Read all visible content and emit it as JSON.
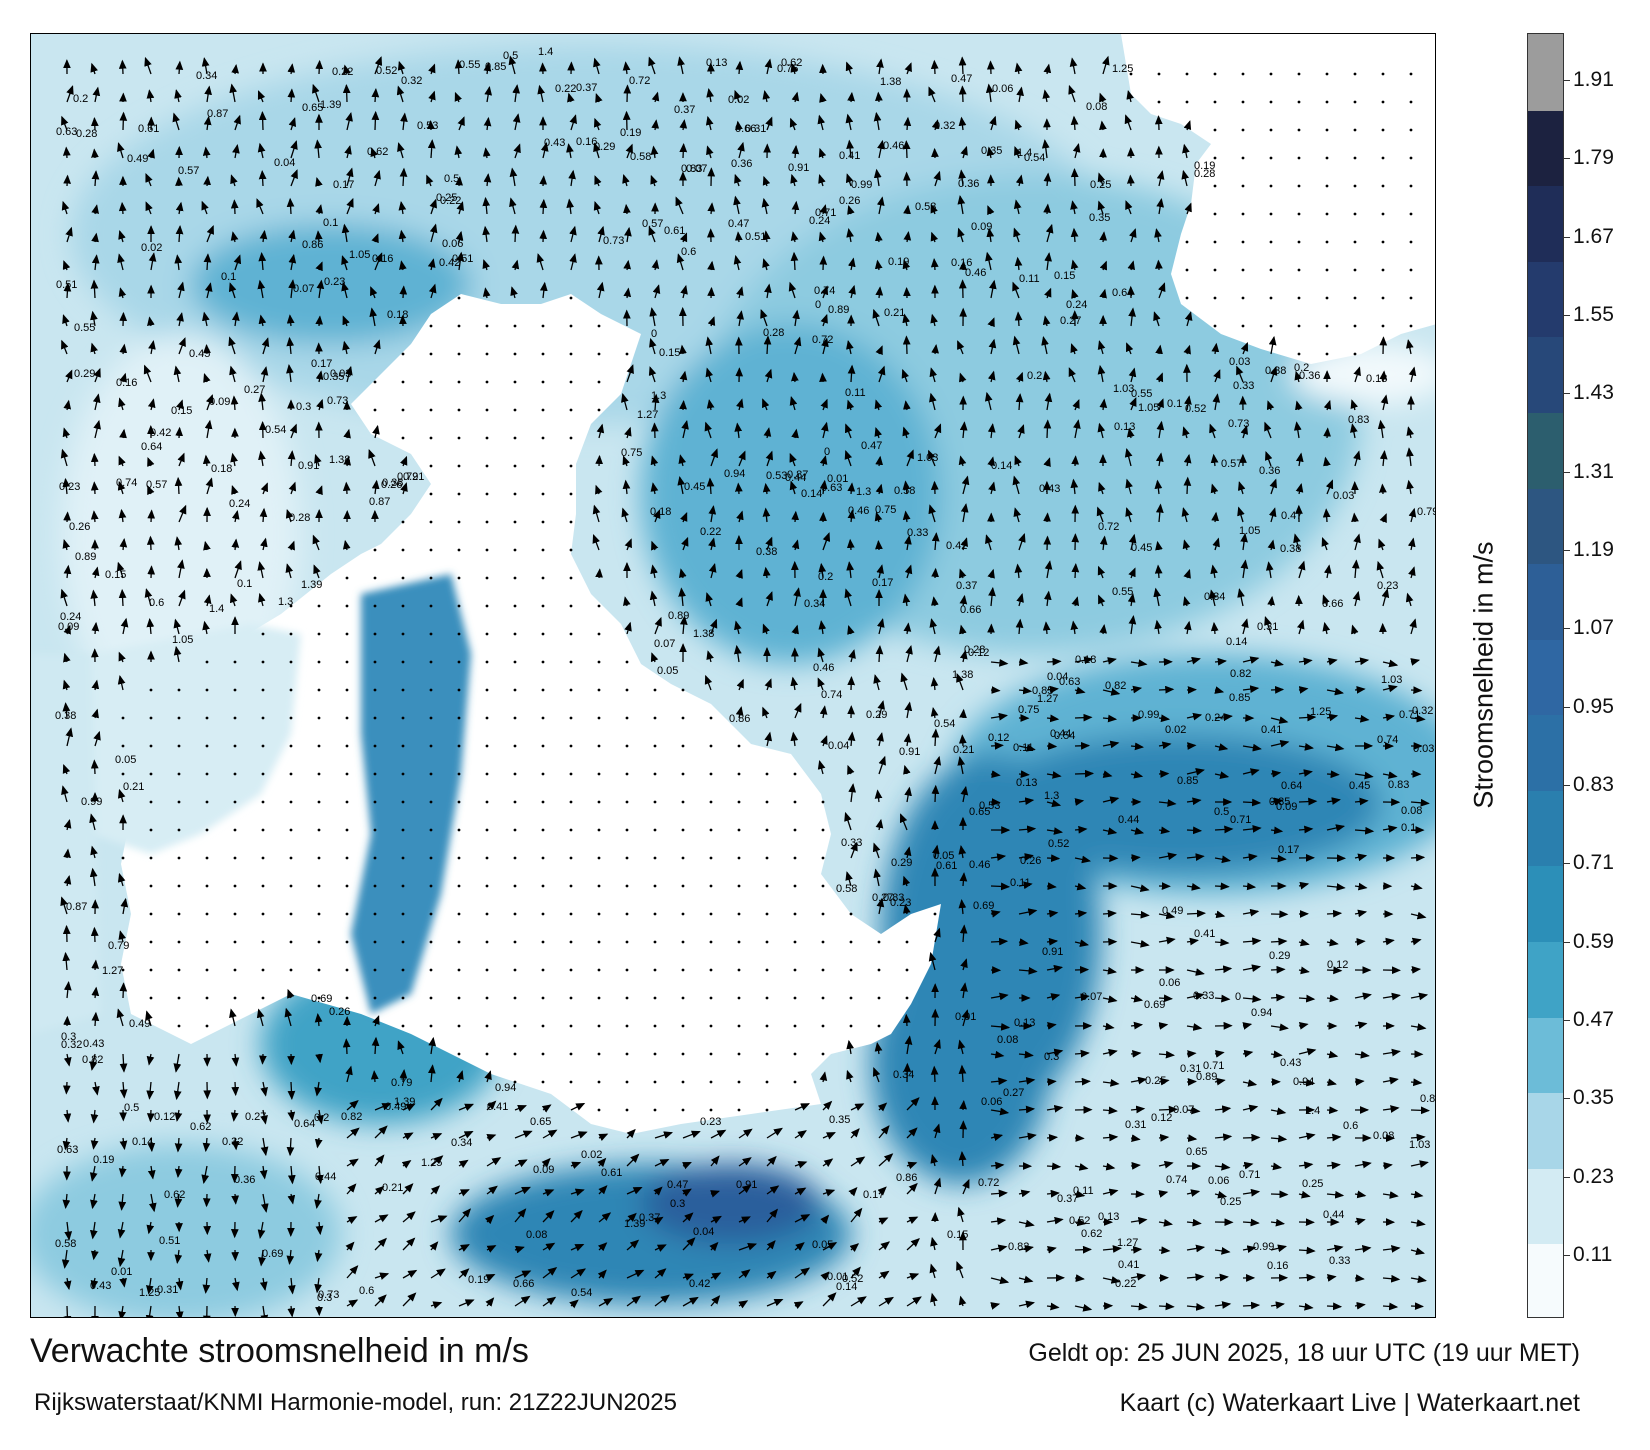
{
  "title": "Verwachte stroomsnelheid in m/s",
  "subtitle": "Rijkswaterstaat/KNMI Harmonie-model, run: 21Z22JUN2025",
  "valid_time": "Geldt op: 25 JUN 2025, 18 uur UTC (19 uur MET)",
  "credit": "Kaart (c) Waterkaart Live | Waterkaart.net",
  "colorbar": {
    "label": "Stroomsnelheid in m/s",
    "ticks": [
      "1.91",
      "1.79",
      "1.67",
      "1.55",
      "1.43",
      "1.31",
      "1.19",
      "1.07",
      "0.95",
      "0.83",
      "0.71",
      "0.59",
      "0.47",
      "0.35",
      "0.23",
      "0.11"
    ],
    "colors": [
      "#f6fbfd",
      "#d3ebf3",
      "#a8d6e8",
      "#6cbcd8",
      "#3fa3c6",
      "#2c8fb8",
      "#2a7fae",
      "#2c70a6",
      "#2f67a3",
      "#2d5f97",
      "#2d5681",
      "#2c5e6e",
      "#274879",
      "#243b6d",
      "#1f2d58",
      "#1c2240",
      "#9c9c9c"
    ]
  },
  "map": {
    "land_color": "#ffffff",
    "sea_colors": {
      "calm": "#d9eef5",
      "light": "#a9d7e8",
      "moderate": "#5fb2d3",
      "strong": "#2f86b5",
      "very_strong": "#2a5f9c"
    },
    "arrow_color": "#000000",
    "value_labels": [
      {
        "v": "0.09"
      },
      {
        "v": "0.07"
      },
      {
        "v": "0.12"
      },
      {
        "v": "0.16"
      },
      {
        "v": "0.11"
      },
      {
        "v": "0.17"
      },
      {
        "v": "0.14"
      },
      {
        "v": "0.13"
      },
      {
        "v": "0.21"
      },
      {
        "v": "0.26"
      },
      {
        "v": "0.27"
      },
      {
        "v": "0.31"
      },
      {
        "v": "0.22"
      },
      {
        "v": "0.08"
      },
      {
        "v": "0.06"
      },
      {
        "v": "0.1"
      },
      {
        "v": "0.15"
      },
      {
        "v": "0.18"
      },
      {
        "v": "0.19"
      },
      {
        "v": "0.2"
      },
      {
        "v": "0.25"
      },
      {
        "v": "0.24"
      },
      {
        "v": "0.28"
      },
      {
        "v": "0.29"
      },
      {
        "v": "0.32"
      },
      {
        "v": "0.35"
      },
      {
        "v": "0.37"
      },
      {
        "v": "0.33"
      },
      {
        "v": "0.3"
      },
      {
        "v": "0.23"
      },
      {
        "v": "0.46"
      },
      {
        "v": "0.47"
      },
      {
        "v": "0.54"
      },
      {
        "v": "0.52"
      },
      {
        "v": "0.44"
      },
      {
        "v": "0.43"
      },
      {
        "v": "0.41"
      },
      {
        "v": "0.38"
      },
      {
        "v": "0.34"
      },
      {
        "v": "0.36"
      },
      {
        "v": "0.62"
      },
      {
        "v": "0.74"
      },
      {
        "v": "0.82"
      },
      {
        "v": "0.71"
      },
      {
        "v": "0.91"
      },
      {
        "v": "0.86"
      },
      {
        "v": "0.99"
      },
      {
        "v": "1.03"
      },
      {
        "v": "1.05"
      },
      {
        "v": "0.57"
      },
      {
        "v": "0.65"
      },
      {
        "v": "0.72"
      },
      {
        "v": "0.85"
      },
      {
        "v": "0.83"
      },
      {
        "v": "0.87"
      },
      {
        "v": "0.73"
      },
      {
        "v": "0.75"
      },
      {
        "v": "0.61"
      },
      {
        "v": "0.64"
      },
      {
        "v": "0.58"
      },
      {
        "v": "0.55"
      },
      {
        "v": "0.53"
      },
      {
        "v": "0.51"
      },
      {
        "v": "0.49"
      },
      {
        "v": "0.42"
      },
      {
        "v": "0.45"
      },
      {
        "v": "0.5"
      },
      {
        "v": "0.63"
      },
      {
        "v": "0.66"
      },
      {
        "v": "1.25"
      },
      {
        "v": "1.38"
      },
      {
        "v": "1.39"
      },
      {
        "v": "1.4"
      },
      {
        "v": "1.3"
      },
      {
        "v": "1.27"
      },
      {
        "v": "0.94"
      },
      {
        "v": "0.79"
      },
      {
        "v": "0.89"
      },
      {
        "v": "0.69"
      },
      {
        "v": "0.6"
      },
      {
        "v": "0.05"
      },
      {
        "v": "0.04"
      },
      {
        "v": "0.03"
      },
      {
        "v": "0.02"
      },
      {
        "v": "0.01"
      },
      {
        "v": "0"
      }
    ]
  }
}
